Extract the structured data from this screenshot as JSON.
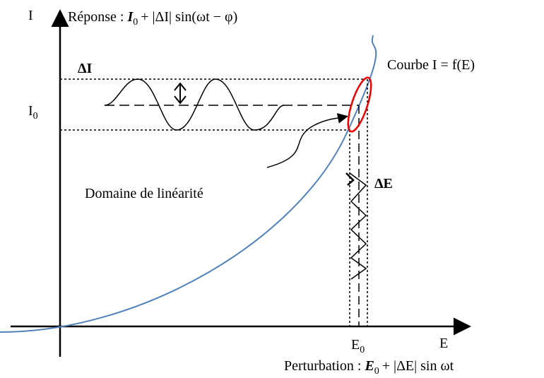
{
  "axes": {
    "y_label": "I",
    "x_label": "E"
  },
  "response": {
    "label": "Réponse :",
    "symbol": "I",
    "subscript": "0",
    "rest": "+ |ΔI| sin(ωt − φ)"
  },
  "delta_i": "ΔI",
  "curve_label": "Courbe I = f(E)",
  "i0": {
    "symbol": "I",
    "subscript": "0"
  },
  "domain_label": "Domaine de linéarité",
  "delta_e": "ΔE",
  "e0": {
    "symbol": "E",
    "subscript": "0"
  },
  "perturbation": {
    "label": "Perturbation :",
    "symbol": "E",
    "subscript": "0",
    "rest": "+ |ΔE| sin ωt"
  }
}
